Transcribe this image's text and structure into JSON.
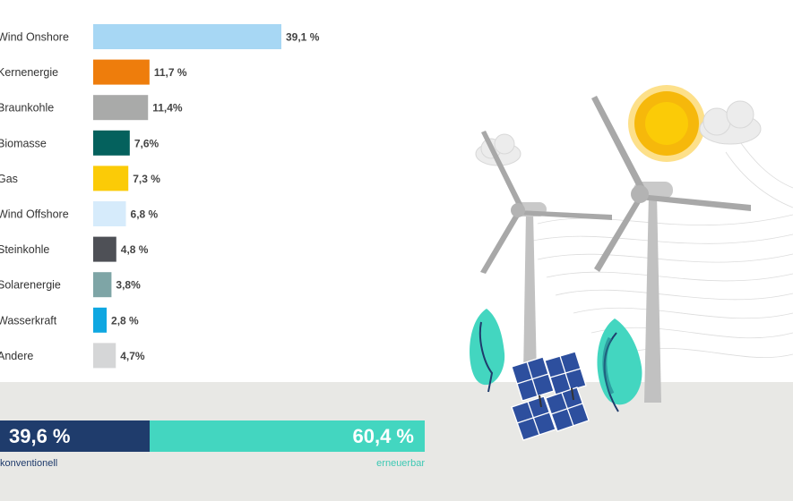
{
  "colors": {
    "conventional": "#1f3c6c",
    "renewable": "#43d6c0",
    "ground": "#e8e8e5"
  },
  "chart_data": {
    "type": "bar",
    "orientation": "horizontal",
    "categories": [
      "Wind Onshore",
      "Kernenergie",
      "Braunkohle",
      "Biomasse",
      "Gas",
      "Wind Offshore",
      "Steinkohle",
      "Solarenergie",
      "Wasserkraft",
      "Andere"
    ],
    "values": [
      39.1,
      11.7,
      11.4,
      7.6,
      7.3,
      6.8,
      4.8,
      3.8,
      2.8,
      4.7
    ],
    "value_labels": [
      "39,1 %",
      "11,7 %",
      "11,4%",
      "7,6%",
      "7,3 %",
      "6,8 %",
      "4,8 %",
      "3,8%",
      "2,8 %",
      "4,7%"
    ],
    "bar_colors": [
      "#a7d7f4",
      "#ee7d0c",
      "#a9aaa9",
      "#04615d",
      "#fbcb07",
      "#d6ebfb",
      "#4e5056",
      "#7ea5a6",
      "#0fa7e1",
      "#d5d6d7"
    ],
    "grid": false
  },
  "split": {
    "conventional_value": 39.6,
    "renewable_value": 60.4,
    "conventional_pct": "39,6 %",
    "renewable_pct": "60,4 %",
    "conventional_label": "konventionell",
    "renewable_label": "erneuerbar"
  },
  "illustration": {
    "icons": [
      "sun-icon",
      "cloud-icon",
      "wind-turbine-icon",
      "solar-panel-icon",
      "tree-icon",
      "wave-lines"
    ]
  }
}
